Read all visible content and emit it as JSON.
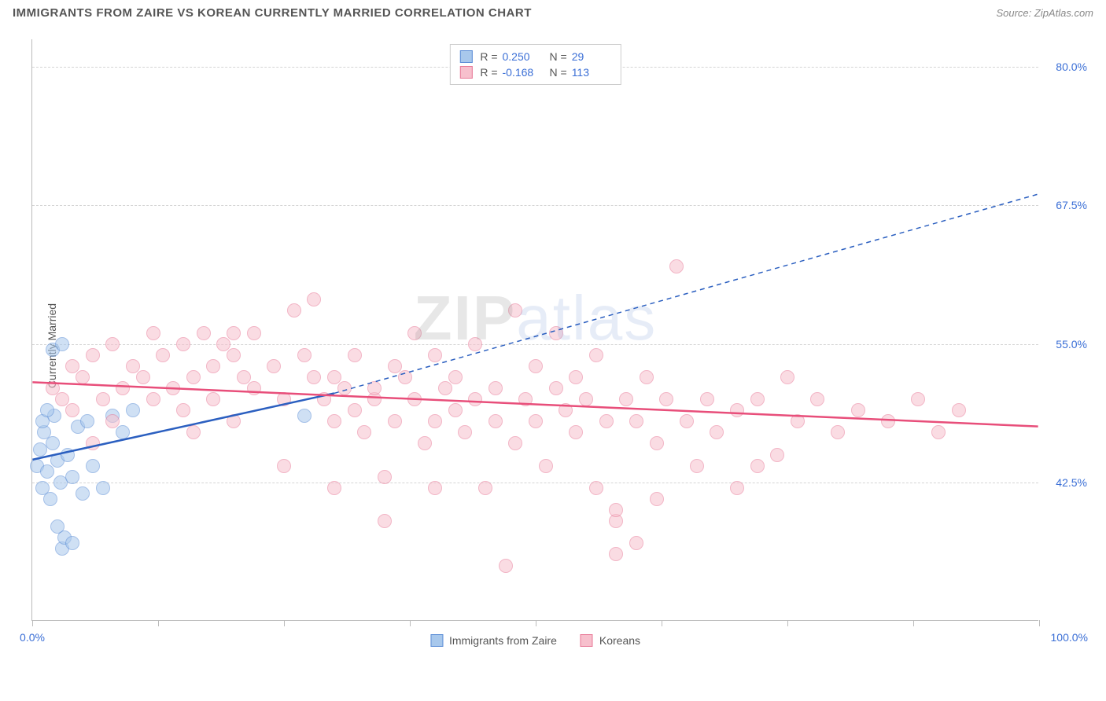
{
  "title": "IMMIGRANTS FROM ZAIRE VS KOREAN CURRENTLY MARRIED CORRELATION CHART",
  "source": "Source: ZipAtlas.com",
  "ylabel": "Currently Married",
  "watermark_part1": "ZIP",
  "watermark_part2": "atlas",
  "chart": {
    "type": "scatter",
    "xlim": [
      0,
      100
    ],
    "ylim": [
      30,
      82.5
    ],
    "x_ticks": [
      0,
      12.5,
      25,
      37.5,
      50,
      62.5,
      75,
      87.5,
      100
    ],
    "x_tick_labels": {
      "0": "0.0%",
      "100": "100.0%"
    },
    "y_gridlines": [
      42.5,
      55.0,
      67.5,
      80.0
    ],
    "y_tick_labels": {
      "42.5": "42.5%",
      "55.0": "55.0%",
      "67.5": "67.5%",
      "80.0": "80.0%"
    },
    "background_color": "#ffffff",
    "grid_color": "#d5d5d5",
    "axis_color": "#bbbbbb",
    "tick_label_color": "#3b6fd6",
    "text_color": "#555555",
    "marker_radius": 9,
    "marker_opacity": 0.55,
    "series": [
      {
        "id": "zaire",
        "label": "Immigrants from Zaire",
        "color_fill": "#a8c8ec",
        "color_stroke": "#5b8dd6",
        "stats": {
          "R": "0.250",
          "N": "29"
        },
        "trend": {
          "x1": 0,
          "y1": 44.5,
          "x2": 30,
          "y2": 50.5,
          "dash_x2": 100,
          "dash_y2": 68.5,
          "line_color": "#2b5fc0",
          "line_width": 2.5
        },
        "points": [
          [
            0.5,
            44.0
          ],
          [
            0.8,
            45.5
          ],
          [
            1.0,
            42.0
          ],
          [
            1.2,
            47.0
          ],
          [
            1.5,
            43.5
          ],
          [
            1.8,
            41.0
          ],
          [
            2.0,
            46.0
          ],
          [
            2.2,
            48.5
          ],
          [
            2.5,
            44.5
          ],
          [
            2.8,
            42.5
          ],
          [
            3.0,
            36.5
          ],
          [
            3.2,
            37.5
          ],
          [
            3.5,
            45.0
          ],
          [
            1.0,
            48.0
          ],
          [
            1.5,
            49.0
          ],
          [
            4.0,
            43.0
          ],
          [
            4.5,
            47.5
          ],
          [
            5.0,
            41.5
          ],
          [
            2.0,
            54.5
          ],
          [
            3.0,
            55.0
          ],
          [
            5.5,
            48.0
          ],
          [
            6.0,
            44.0
          ],
          [
            7.0,
            42.0
          ],
          [
            8.0,
            48.5
          ],
          [
            9.0,
            47.0
          ],
          [
            10.0,
            49.0
          ],
          [
            4.0,
            37.0
          ],
          [
            2.5,
            38.5
          ],
          [
            27.0,
            48.5
          ]
        ]
      },
      {
        "id": "koreans",
        "label": "Koreans",
        "color_fill": "#f7c0cd",
        "color_stroke": "#e87a98",
        "stats": {
          "R": "-0.168",
          "N": "113"
        },
        "trend": {
          "x1": 0,
          "y1": 51.5,
          "x2": 100,
          "y2": 47.5,
          "line_color": "#e84e7a",
          "line_width": 2.5
        },
        "points": [
          [
            2,
            51
          ],
          [
            3,
            50
          ],
          [
            4,
            53
          ],
          [
            5,
            52
          ],
          [
            6,
            54
          ],
          [
            7,
            50
          ],
          [
            8,
            55
          ],
          [
            9,
            51
          ],
          [
            10,
            53
          ],
          [
            11,
            52
          ],
          [
            12,
            56
          ],
          [
            13,
            54
          ],
          [
            14,
            51
          ],
          [
            15,
            55
          ],
          [
            16,
            52
          ],
          [
            17,
            56
          ],
          [
            18,
            53
          ],
          [
            19,
            55
          ],
          [
            20,
            54
          ],
          [
            21,
            52
          ],
          [
            22,
            56
          ],
          [
            15,
            49
          ],
          [
            16,
            47
          ],
          [
            18,
            50
          ],
          [
            20,
            48
          ],
          [
            22,
            51
          ],
          [
            24,
            53
          ],
          [
            25,
            50
          ],
          [
            26,
            58
          ],
          [
            27,
            54
          ],
          [
            28,
            52
          ],
          [
            29,
            50
          ],
          [
            30,
            48
          ],
          [
            31,
            51
          ],
          [
            32,
            49
          ],
          [
            33,
            47
          ],
          [
            34,
            50
          ],
          [
            35,
            43
          ],
          [
            36,
            48
          ],
          [
            37,
            52
          ],
          [
            38,
            50
          ],
          [
            39,
            46
          ],
          [
            40,
            48
          ],
          [
            41,
            51
          ],
          [
            42,
            49
          ],
          [
            43,
            47
          ],
          [
            44,
            50
          ],
          [
            45,
            42
          ],
          [
            46,
            48
          ],
          [
            47,
            35
          ],
          [
            48,
            46
          ],
          [
            49,
            50
          ],
          [
            50,
            48
          ],
          [
            51,
            44
          ],
          [
            52,
            51
          ],
          [
            53,
            49
          ],
          [
            54,
            47
          ],
          [
            55,
            50
          ],
          [
            56,
            42
          ],
          [
            57,
            48
          ],
          [
            58,
            39
          ],
          [
            59,
            50
          ],
          [
            60,
            48
          ],
          [
            61,
            52
          ],
          [
            62,
            46
          ],
          [
            63,
            50
          ],
          [
            64,
            62
          ],
          [
            65,
            48
          ],
          [
            66,
            44
          ],
          [
            67,
            50
          ],
          [
            68,
            47
          ],
          [
            70,
            49
          ],
          [
            72,
            50
          ],
          [
            74,
            45
          ],
          [
            75,
            52
          ],
          [
            76,
            48
          ],
          [
            78,
            50
          ],
          [
            80,
            47
          ],
          [
            82,
            49
          ],
          [
            85,
            48
          ],
          [
            88,
            50
          ],
          [
            90,
            47
          ],
          [
            92,
            49
          ],
          [
            30,
            52
          ],
          [
            32,
            54
          ],
          [
            34,
            51
          ],
          [
            36,
            53
          ],
          [
            38,
            56
          ],
          [
            40,
            54
          ],
          [
            42,
            52
          ],
          [
            44,
            55
          ],
          [
            46,
            51
          ],
          [
            48,
            58
          ],
          [
            50,
            53
          ],
          [
            52,
            56
          ],
          [
            54,
            52
          ],
          [
            56,
            54
          ],
          [
            58,
            40
          ],
          [
            60,
            37
          ],
          [
            28,
            59
          ],
          [
            20,
            56
          ],
          [
            12,
            50
          ],
          [
            8,
            48
          ],
          [
            6,
            46
          ],
          [
            4,
            49
          ],
          [
            70,
            42
          ],
          [
            58,
            36
          ],
          [
            40,
            42
          ],
          [
            35,
            39
          ],
          [
            30,
            42
          ],
          [
            25,
            44
          ],
          [
            72,
            44
          ],
          [
            62,
            41
          ]
        ]
      }
    ]
  },
  "stats_legend_labels": {
    "R": "R =",
    "N": "N ="
  }
}
